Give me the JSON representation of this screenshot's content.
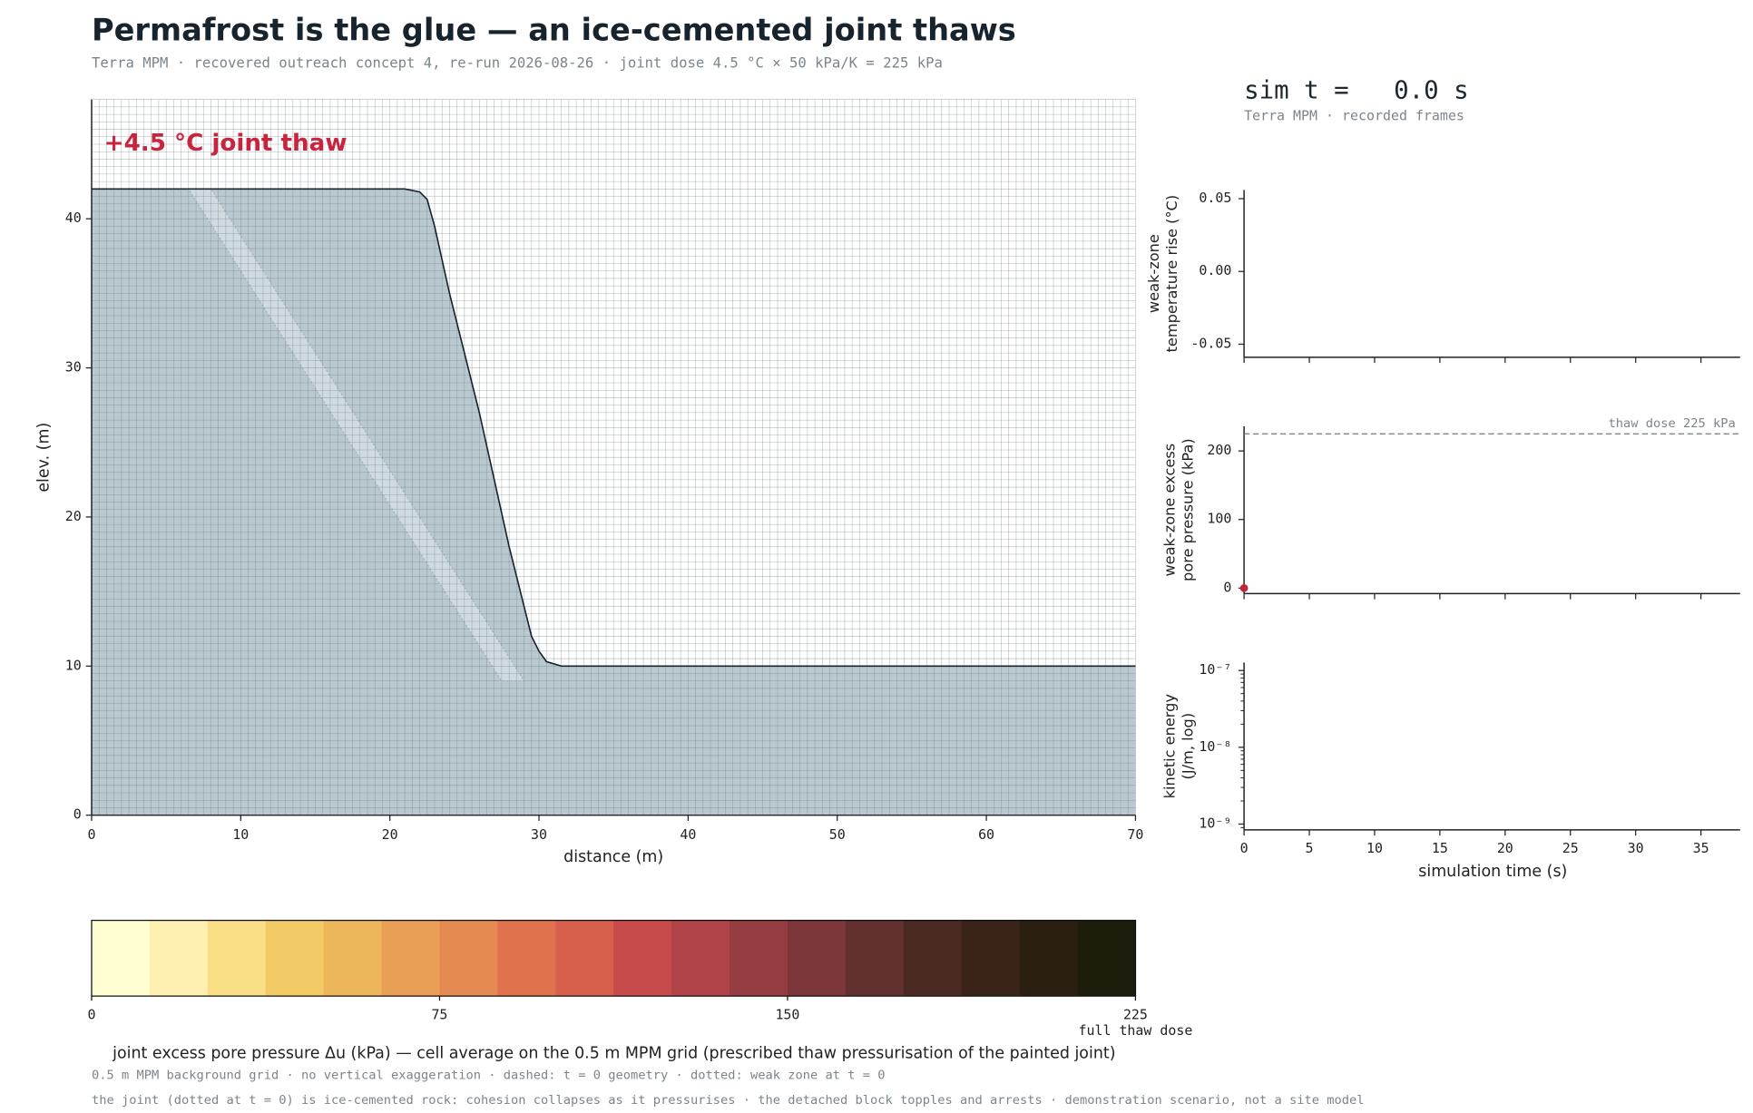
{
  "title": "Permafrost is the glue — an ice-cemented joint thaws",
  "subtitle": "Terra MPM · recovered outreach concept 4, re-run 2026-08-26 · joint dose 4.5 °C × 50 kPa/K = 225 kPa",
  "sim_time": "sim t =   0.0 s",
  "sim_caption": "Terra MPM · recorded frames",
  "footnotes": [
    "0.5 m MPM background grid · no vertical exaggeration · dashed: t = 0 geometry · dotted: weak zone at t = 0",
    "the joint (dotted at t = 0) is ice-cemented rock: cohesion collapses as it pressurises · the detached block topples and arrests · demonstration scenario, not a site model"
  ],
  "chart_data": [
    {
      "type": "profile",
      "annotation": "+4.5 °C joint thaw",
      "x": [
        0,
        21,
        22,
        22.5,
        23,
        24,
        25,
        26,
        27,
        28,
        29,
        29.5,
        30,
        30.5,
        31.5,
        70
      ],
      "values": [
        42,
        42,
        41.8,
        41.3,
        39.5,
        35,
        31,
        27,
        22.5,
        18,
        14,
        12,
        11,
        10.3,
        10,
        10
      ],
      "weak_zone": {
        "x": [
          6.5,
          8,
          29,
          27.5
        ],
        "y": [
          42,
          42,
          9,
          9
        ]
      },
      "color": "#b9c9cf",
      "xlabel": "distance (m)",
      "ylabel": "elev. (m)",
      "xlim": [
        0,
        70
      ],
      "ylim": [
        0,
        48
      ],
      "xticks": [
        0,
        10,
        20,
        30,
        40,
        50,
        60,
        70
      ],
      "yticks": [
        0,
        10,
        20,
        30,
        40
      ],
      "grid_step": 0.5
    },
    {
      "type": "colorbar",
      "label": "joint excess pore pressure Δu (kPa) — cell average on the 0.5 m MPM grid (prescribed thaw pressurisation of the painted joint)",
      "end_note": "full thaw dose",
      "xlim": [
        0,
        225
      ],
      "xticks": [
        0,
        75,
        150,
        225
      ],
      "colors": [
        "#fffdd2",
        "#fdf0b0",
        "#f8de85",
        "#f2cb67",
        "#edb65a",
        "#e99f55",
        "#e58a51",
        "#e0724d",
        "#d6604c",
        "#c84b4b",
        "#b04347",
        "#963d41",
        "#7c3639",
        "#633030",
        "#4c2a24",
        "#3a2419",
        "#2a1f10",
        "#1e1c0a"
      ]
    },
    {
      "type": "line",
      "ylabel": [
        "weak-zone",
        "temperature rise (°C)"
      ],
      "xlim": [
        0,
        38
      ],
      "ylim": [
        -0.059,
        0.056
      ],
      "xticks": [
        0,
        5,
        10,
        15,
        20,
        25,
        30,
        35
      ],
      "yticks": [
        -0.05,
        {
          "value": 0,
          "label": "0.00"
        },
        0.05
      ],
      "show_xtick_labels": false
    },
    {
      "type": "line",
      "ylabel": [
        "weak-zone excess",
        "pore pressure (kPa)"
      ],
      "xlim": [
        0,
        38
      ],
      "ylim": [
        -8,
        236
      ],
      "xticks": [
        0,
        5,
        10,
        15,
        20,
        25,
        30,
        35
      ],
      "yticks": [
        0,
        100,
        200
      ],
      "hline": {
        "value": 225,
        "label": "thaw dose 225 kPa"
      },
      "series": [
        {
          "color": "#c0283a",
          "x": [
            0
          ],
          "values": [
            0
          ]
        }
      ],
      "show_xtick_labels": false
    },
    {
      "type": "line",
      "ylabel": [
        "kinetic energy",
        "(J/m, log)"
      ],
      "xlabel": "simulation time (s)",
      "log_scale": true,
      "xlim": [
        0,
        38
      ],
      "ylim": [
        8.4e-10,
        1.27e-07
      ],
      "xticks": [
        0,
        5,
        10,
        15,
        20,
        25,
        30,
        35
      ],
      "yticks": [
        {
          "value": 1e-09,
          "label": "10⁻⁹"
        },
        {
          "value": 1e-08,
          "label": "10⁻⁸"
        },
        {
          "value": 1e-07,
          "label": "10⁻⁷"
        }
      ],
      "show_xtick_labels": true
    }
  ]
}
